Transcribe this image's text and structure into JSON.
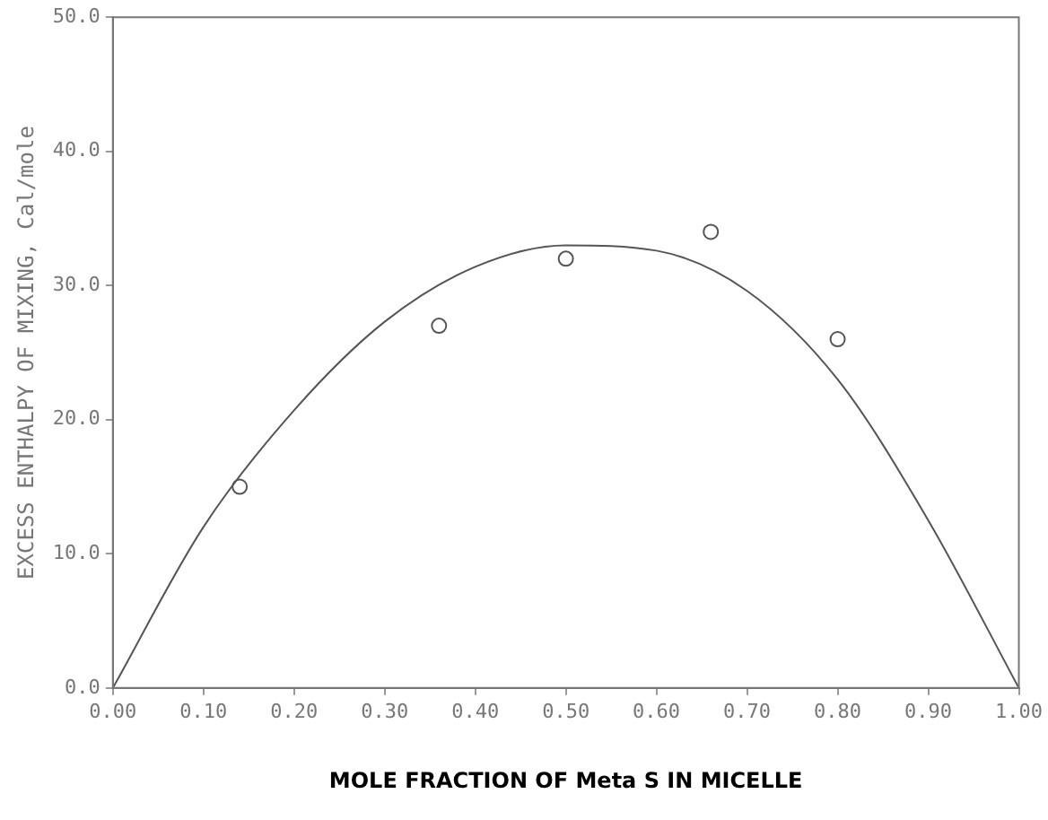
{
  "chart_data": {
    "type": "scatter",
    "xlabel": "MOLE FRACTION OF Meta S IN MICELLE",
    "ylabel": "EXCESS ENTHALPY OF MIXING, Cal/mole",
    "xlim": [
      0,
      1
    ],
    "ylim": [
      0,
      50
    ],
    "xticks": [
      {
        "value": 0,
        "label": "0.00"
      },
      {
        "value": 0.1,
        "label": "0.10"
      },
      {
        "value": 0.2,
        "label": "0.20"
      },
      {
        "value": 0.3,
        "label": "0.30"
      },
      {
        "value": 0.4,
        "label": "0.40"
      },
      {
        "value": 0.5,
        "label": "0.50"
      },
      {
        "value": 0.6,
        "label": "0.60"
      },
      {
        "value": 0.7,
        "label": "0.70"
      },
      {
        "value": 0.8,
        "label": "0.80"
      },
      {
        "value": 0.9,
        "label": "0.90"
      },
      {
        "value": 1,
        "label": "1.00"
      }
    ],
    "yticks": [
      {
        "value": 0,
        "label": "0.0"
      },
      {
        "value": 10,
        "label": "10.0"
      },
      {
        "value": 20,
        "label": "20.0"
      },
      {
        "value": 30,
        "label": "30.0"
      },
      {
        "value": 40,
        "label": "40.0"
      },
      {
        "value": 50,
        "label": "50.0"
      }
    ],
    "grid": false,
    "legend": false,
    "marker": "circle",
    "series": [
      {
        "color": "#555555",
        "x": [
          0.14,
          0.36,
          0.5,
          0.66,
          0.8
        ],
        "values": [
          15,
          27,
          32,
          34,
          26
        ]
      },
      {
        "type": "line",
        "color": "#555555",
        "marker": "none",
        "x": [
          0,
          0.1,
          0.2,
          0.3,
          0.4,
          0.5,
          0.6,
          0.7,
          0.8,
          0.9,
          1
        ],
        "values": [
          0,
          12,
          20.7,
          27.3,
          31.4,
          33,
          32.6,
          29.6,
          23,
          12.5,
          0
        ]
      }
    ]
  }
}
